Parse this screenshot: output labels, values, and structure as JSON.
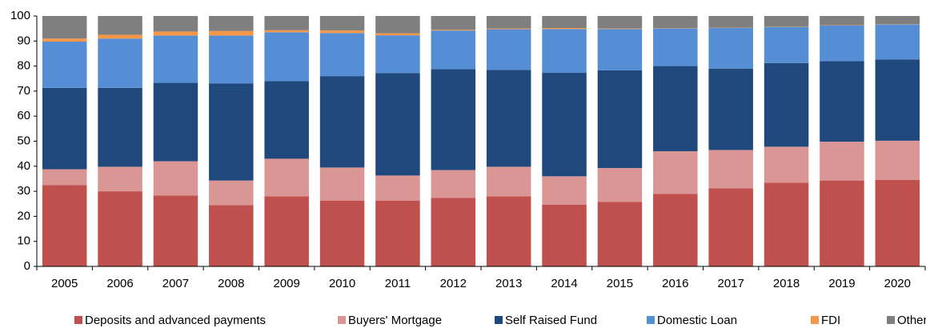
{
  "chart_data": {
    "type": "stacked_bar",
    "categories": [
      "2005",
      "2006",
      "2007",
      "2008",
      "2009",
      "2010",
      "2011",
      "2012",
      "2013",
      "2014",
      "2015",
      "2016",
      "2017",
      "2018",
      "2019",
      "2020"
    ],
    "series": [
      {
        "name": "Deposits and advanced payments",
        "color": "#c0504d",
        "values": [
          32.5,
          30,
          28.3,
          24.5,
          28,
          26.3,
          26.2,
          27.4,
          28,
          24.6,
          25.8,
          29,
          31.2,
          33.4,
          34.3,
          34.5
        ]
      },
      {
        "name": "Buyers' Mortgage",
        "color": "#d99694",
        "values": [
          6.3,
          9.8,
          13.7,
          9.8,
          15,
          13.2,
          10.1,
          11.1,
          11.8,
          11.4,
          13.5,
          17,
          15.3,
          14.4,
          15.5,
          15.7
        ]
      },
      {
        "name": "Self Raised Fund",
        "color": "#1f497d",
        "values": [
          32.5,
          31.5,
          31.3,
          38.7,
          31,
          36.5,
          40.9,
          40.3,
          38.7,
          41.3,
          39,
          34,
          32.5,
          33.4,
          32.2,
          32.4
        ]
      },
      {
        "name": "Domestic Loan",
        "color": "#558ed5",
        "values": [
          18.5,
          19.7,
          18.9,
          19.2,
          19.5,
          17.2,
          15.1,
          15.4,
          16.2,
          17.5,
          16.5,
          15,
          16.2,
          14.4,
          14.2,
          14
        ]
      },
      {
        "name": "FDI",
        "color": "#f79646",
        "values": [
          1.2,
          1.5,
          1.6,
          1.8,
          0.8,
          1,
          0.8,
          0.3,
          0.3,
          0.4,
          0.2,
          0.1,
          0.1,
          0.1,
          0.1,
          0.1
        ]
      },
      {
        "name": "Other",
        "color": "#7f7f7f",
        "values": [
          9,
          7.5,
          6.2,
          6,
          5.7,
          5.8,
          6.9,
          5.5,
          5,
          4.8,
          5,
          4.9,
          4.7,
          4.3,
          3.7,
          3.3
        ]
      }
    ],
    "ylim": [
      0,
      100
    ],
    "yticks": [
      0,
      10,
      20,
      30,
      40,
      50,
      60,
      70,
      80,
      90,
      100
    ],
    "grid": false,
    "legend": "bottom"
  }
}
